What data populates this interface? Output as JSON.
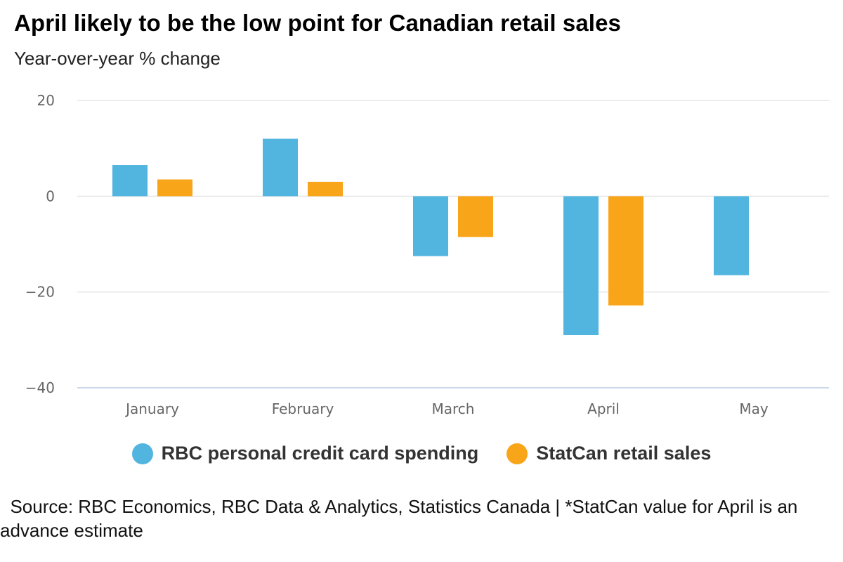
{
  "title": "April likely to be the low point for Canadian retail sales",
  "subtitle": "Year-over-year % change",
  "source": "  Source: RBC Economics, RBC Data & Analytics, Statistics Canada | *StatCan value for April is an advance estimate",
  "colors": {
    "rbc": "#52b5e0",
    "statcan": "#f9a51a",
    "grid": "#e6e6e6",
    "axis": "#ccd6eb"
  },
  "chart_data": {
    "type": "bar",
    "title": "April likely to be the low point for Canadian retail sales",
    "subtitle": "Year-over-year % change",
    "xlabel": "",
    "ylabel": "",
    "ylim": [
      -40,
      20
    ],
    "yticks": [
      20,
      0,
      -20,
      -40
    ],
    "ytick_labels": [
      "20",
      "0",
      "−20",
      "−40"
    ],
    "grid": true,
    "legend_position": "bottom-center",
    "categories": [
      "January",
      "February",
      "March",
      "April",
      "May"
    ],
    "series": [
      {
        "name": "RBC personal credit card spending",
        "color": "#52b5e0",
        "values": [
          6.5,
          12,
          -12.5,
          -29,
          -16.5
        ]
      },
      {
        "name": "StatCan retail sales",
        "color": "#f9a51a",
        "values": [
          3.5,
          3,
          -8.5,
          -22.8,
          null
        ]
      }
    ]
  }
}
